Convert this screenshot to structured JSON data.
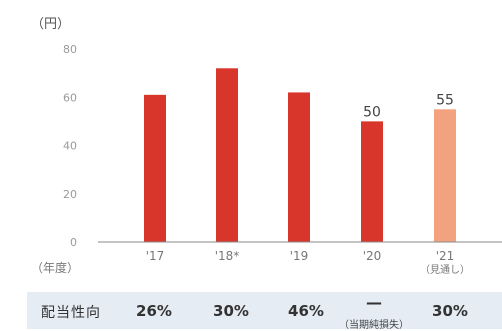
{
  "chart_data": {
    "type": "bar",
    "unit_label": "（円）",
    "xlabel": "（年度）",
    "categories": [
      "'17",
      "'18*",
      "'19",
      "'20",
      "'21"
    ],
    "category_notes": [
      "",
      "",
      "",
      "",
      "（見通し）"
    ],
    "values": [
      61,
      72,
      62,
      50,
      55
    ],
    "data_labels": [
      "",
      "",
      "",
      "50",
      "55"
    ],
    "bar_colors": [
      "#d9362b",
      "#d9362b",
      "#d9362b",
      "#d9362b",
      "#f2a27e"
    ],
    "yticks": [
      0,
      20,
      40,
      60,
      80
    ],
    "ylim": [
      0,
      80
    ],
    "grid": false,
    "legend": "none"
  },
  "payout": {
    "label": "配当性向",
    "values": [
      "26%",
      "30%",
      "46%",
      "",
      "30%"
    ],
    "dash": "—",
    "loss_note": "（当期純損失）"
  }
}
